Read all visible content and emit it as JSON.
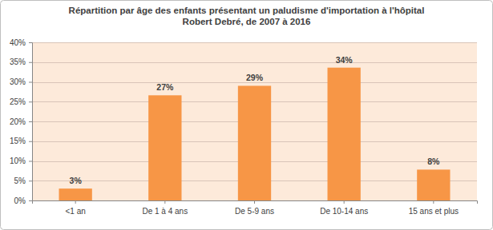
{
  "chart_data": {
    "type": "bar",
    "title": "Répartition par âge des enfants présentant un paludisme d'importation à l'hôpital Robert Debré, de 2007 à 2016",
    "categories": [
      "<1 an",
      "De 1 à 4 ans",
      "De 5-9 ans",
      "De 10-14 ans",
      "15 ans et plus"
    ],
    "values": [
      3,
      26.6,
      29,
      33.6,
      7.8
    ],
    "value_labels": [
      "3%",
      "27%",
      "29%",
      "34%",
      "8%"
    ],
    "color": "#f79646",
    "ylim": [
      0,
      40
    ],
    "yticks": [
      {
        "value": 0,
        "label": "0%"
      },
      {
        "value": 5,
        "label": "5%"
      },
      {
        "value": 10,
        "label": "10%"
      },
      {
        "value": 15,
        "label": "15%"
      },
      {
        "value": 20,
        "label": "20%"
      },
      {
        "value": 25,
        "label": "25%"
      },
      {
        "value": 30,
        "label": "30%"
      },
      {
        "value": 35,
        "label": "35%"
      },
      {
        "value": 40,
        "label": "40%"
      }
    ],
    "grid": true,
    "data_labels": true
  }
}
